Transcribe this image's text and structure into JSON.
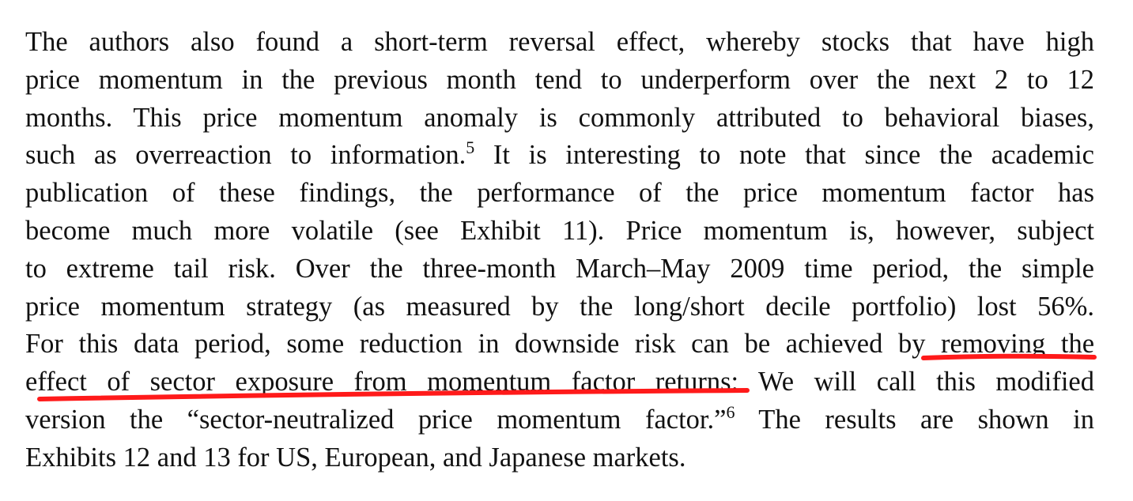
{
  "paragraph": {
    "l1": "The authors also found a short-term reversal effect, whereby stocks that have high",
    "l2": "price momentum in the previous month tend to underperform over the next 2 to 12",
    "l3": "months. This price momentum anomaly is commonly attributed to behavioral biases,",
    "l4a": "such as overreaction to information.",
    "l4sup": "5",
    "l4b": " It is interesting to note that since the academic",
    "l5": "publication of these findings, the performance of the price momentum factor has",
    "l6": "become much more volatile (see Exhibit 11). Price momentum is, however, subject",
    "l7": "to extreme tail risk. Over the three-month March–May 2009 time period, the simple",
    "l8": "price momentum strategy (as measured by the long/short decile portfolio) lost 56%.",
    "l9a": "For this data period, some reduction in downside risk can be achieved by ",
    "l9b": "removing the",
    "l10a": "effect of sector exposure from momentum factor returns",
    "l10b": ": We will call this modified",
    "l11a": "version the “sector-neutralized price momentum factor.”",
    "l11sup": "6",
    "l11b": " The results are shown in",
    "l12": "Exhibits 12 and 13 for US, European, and Japanese markets."
  },
  "annotation": {
    "underline_color": "#ff1a1a"
  }
}
